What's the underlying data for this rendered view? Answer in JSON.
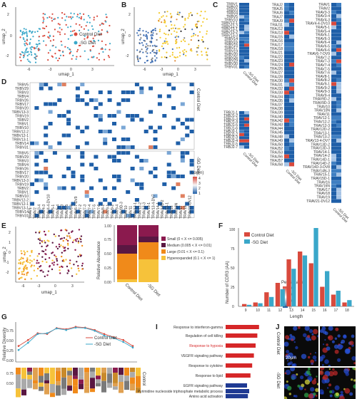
{
  "panels": {
    "A": "A",
    "B": "B",
    "C": "C",
    "D": "D",
    "E": "E",
    "F": "F",
    "G": "G",
    "I": "I",
    "J": "J"
  },
  "colors": {
    "control": "#d94a3d",
    "sg": "#3aa7c9",
    "yellow": "#f4c92b",
    "blue": "#3f6fb4",
    "heat": "#1f5fa8"
  },
  "umap": {
    "xlabel": "umap_1",
    "ylabel": "umap_2",
    "xticks": [
      "-6",
      "-3",
      "0",
      "3"
    ],
    "yticks": [
      "2",
      "1",
      "0",
      "-1",
      "-2"
    ]
  },
  "legendA": [
    {
      "label": "Control Diet"
    },
    {
      "label": "-SG Diet"
    }
  ],
  "panelC": {
    "trbv": [
      "TRBV1",
      "TRBV2",
      "TRBV3",
      "TRBV4",
      "TRBV5",
      "TRBV10",
      "TRBV12-1",
      "TRBV12-2",
      "TRBV13-1",
      "TRBV13-2",
      "TRBV13-3",
      "TRBV14",
      "TRBV15",
      "TRBV16",
      "TRBV17",
      "TRBV19",
      "TRBV20",
      "TRBV26",
      "TRBV29",
      "TRBV30",
      "TRBV31"
    ],
    "trbj": [
      "TRBJ1-1",
      "TRBJ1-2",
      "TRBJ1-3",
      "TRBJ1-4",
      "TRBJ1-5",
      "TRBJ1-6",
      "TRBJ2-1",
      "TRBJ2-2",
      "TRBJ2-3",
      "TRBJ2-4",
      "TRBJ2-5",
      "TRBJ2-7"
    ],
    "traj": [
      "TRAJ2",
      "TRAJ5",
      "TRAJ6",
      "TRAJ7",
      "TRAJ9",
      "TRAJ11",
      "TRAJ12",
      "TRAJ13",
      "TRAJ15",
      "TRAJ16",
      "TRAJ17",
      "TRAJ18",
      "TRAJ21",
      "TRAJ22",
      "TRAJ23",
      "TRAJ24",
      "TRAJ26",
      "TRAJ27",
      "TRAJ28",
      "TRAJ30",
      "TRAJ31",
      "TRAJ32",
      "TRAJ33",
      "TRAJ34",
      "TRAJ35",
      "TRAJ37",
      "TRAJ38",
      "TRAJ39",
      "TRAJ40",
      "TRAJ42",
      "TRAJ43",
      "TRAJ44",
      "TRAJ45",
      "TRAJ48",
      "TRAJ49",
      "TRAJ50",
      "TRAJ52",
      "TRAJ53",
      "TRAJ56",
      "TRAJ57",
      "TRAJ58"
    ],
    "trav": [
      "TRAV1",
      "TRAV2",
      "TRAV3-3",
      "TRAV3-4",
      "TRAV4-3",
      "TRAV4-4-DV10",
      "TRAV5-1",
      "TRAV5-4",
      "TRAV6-1",
      "TRAV6-3",
      "TRAV6-4",
      "TRAV6-5",
      "TRAV6-6",
      "TRAV6-7-DV9",
      "TRAV7-2",
      "TRAV7-3",
      "TRAV7-4",
      "TRAV7-5",
      "TRAV7-6",
      "TRAV8-1",
      "TRAV8-2",
      "TRAV9-1",
      "TRAV9-2",
      "TRAV9-3",
      "TRAV9-4",
      "TRAV9D-2",
      "TRAV9D-3",
      "TRAV10",
      "TRAV10N",
      "TRAV11",
      "TRAV12-1",
      "TRAV12-2",
      "TRAV12-3",
      "TRAV12D-2",
      "TRAV13-1",
      "TRAV13-2",
      "TRAV13-4-DV7",
      "TRAV13D-2",
      "TRAV13D-3",
      "TRAV14-1",
      "TRAV14-2",
      "TRAV14D-1",
      "TRAV14D-2",
      "TRAV14D-3-DV8",
      "TRAV14N-3",
      "TRAV15-1",
      "TRAV15D-1",
      "TRAV16",
      "TRAV16N",
      "TRAV17",
      "TRAV18",
      "TRAV19",
      "TRAV21-DV12"
    ],
    "xcols": [
      "Control Diet",
      "-SG Diet"
    ],
    "legend_title": "Percentage",
    "legend_ticks": [
      "30",
      "20",
      "10",
      "0"
    ]
  },
  "panelD": {
    "rows": [
      "TRBV5",
      "TRBV29",
      "TRBV3",
      "TRBV4",
      "TRBV26",
      "TRBV17",
      "TRBV20",
      "TRBV13-3",
      "TRBV19",
      "TRBV2",
      "TRBV1",
      "TRBV10",
      "TRBV12-2",
      "TRBV12-1",
      "TRBV13-1",
      "TRBV14",
      "TRBV31"
    ],
    "group1": "Control Diet",
    "group2": "-SG Diet",
    "cols": [
      "TRAV1",
      "TRAV2",
      "TRAV3-4",
      "TRAV4-3",
      "TRAV4-4-DV10",
      "TRAV5-1",
      "TRAV5-4",
      "TRAV6-3",
      "TRAV6-5",
      "TRAV6-6",
      "TRAV6-7-DV9",
      "TRAV7-2",
      "TRAV7-3",
      "TRAV7-4",
      "TRAV7-5",
      "TRAV7-6",
      "TRAV8-1",
      "TRAV9-1",
      "TRAV9-2",
      "TRAV9-4",
      "TRAV9D-3",
      "TRAV10",
      "TRAV11",
      "TRAV12-1",
      "TRAV12-2",
      "TRAV12-3",
      "TRAV13-1",
      "TRAV13-4-DV7",
      "TRAV14-1",
      "TRAV14D-2",
      "TRAV15-1",
      "TRAV16",
      "TRAV16N",
      "TRAV17",
      "TRAV19",
      "TRAV21-DV12"
    ],
    "legend_title": "Log(n)",
    "legend_ticks": [
      "4",
      "3",
      "2",
      "1"
    ]
  },
  "panelE": {
    "ylabel": "Relative Abundance",
    "xcats": [
      "Control Diet",
      "-SG Diet"
    ],
    "stack_control": [
      0.35,
      0.15,
      0.45,
      0.05
    ],
    "stack_sg": [
      0.2,
      0.1,
      0.3,
      0.4
    ],
    "legend": [
      {
        "label": "Small (0 < X <= 0.005)",
        "color": "#8b1a4e"
      },
      {
        "label": "Medium (0.005 < X <= 0.01)",
        "color": "#5a1742"
      },
      {
        "label": "Large (0.01 < X <= 0.1)",
        "color": "#f08a1a"
      },
      {
        "label": "Hyperexpanded (0.1 < X <= 1)",
        "color": "#f6c23a"
      }
    ],
    "yticks": [
      "1.00",
      "0.75",
      "0.50",
      "0.25",
      "0.00"
    ]
  },
  "chart_data": {
    "type": "bar",
    "title": "",
    "xlabel": "Length",
    "ylabel": "Number of CDR3 (AA)",
    "categories": [
      "9",
      "10",
      "11",
      "12",
      "13",
      "14",
      "15",
      "16",
      "17",
      "18"
    ],
    "series": [
      {
        "name": "Control Diet",
        "values": [
          3,
          5,
          18,
          30,
          60,
          70,
          55,
          25,
          15,
          5
        ]
      },
      {
        "name": "-SG Diet",
        "values": [
          2,
          4,
          12,
          22,
          48,
          65,
          100,
          45,
          20,
          8
        ]
      }
    ],
    "ylim": [
      0,
      100
    ],
    "yticks": [
      "0",
      "25",
      "50",
      "75",
      "100"
    ]
  },
  "panelG": {
    "ylabel": "Relative Diversity",
    "legend": [
      {
        "label": "Control Diet"
      },
      {
        "label": "-SG Diet"
      }
    ],
    "yticks": [
      "0.75",
      "0.50",
      "0.25",
      "0.00"
    ],
    "control": [
      0.4,
      0.55,
      0.72,
      0.7,
      0.85,
      0.82,
      0.88,
      0.86,
      0.8,
      0.7,
      0.62,
      0.55,
      0.4
    ],
    "sg": [
      0.3,
      0.48,
      0.7,
      0.72,
      0.84,
      0.8,
      0.86,
      0.85,
      0.78,
      0.66,
      0.6,
      0.5,
      0.36
    ],
    "bottom_label": "Control",
    "bottom_yticks": [
      "0.75",
      "0.50"
    ]
  },
  "panelI": {
    "items": [
      {
        "label": "Response to interferon-gamma",
        "color": "#d62728",
        "value": 0.78
      },
      {
        "label": "Regulation of cell killing",
        "color": "#d62728",
        "value": 0.74
      },
      {
        "label": "Response to hypoxia",
        "color": "#d62728",
        "value": 0.7,
        "highlight": true
      },
      {
        "label": "VEGFR signaling pathway",
        "color": "#d62728",
        "value": 0.66
      },
      {
        "label": "Response to cytokine",
        "color": "#d62728",
        "value": 0.62
      },
      {
        "label": "Response to lipid",
        "color": "#d62728",
        "value": 0.58
      },
      {
        "label": "EGFR signaling pathway",
        "color": "#1f3a93",
        "value": 0.5
      },
      {
        "label": "Pyrimidine nucleoside triphosphate metabolic process",
        "color": "#1f3a93",
        "value": 0.55
      },
      {
        "label": "Amino acid activation",
        "color": "#1f3a93",
        "value": 0.52
      }
    ]
  },
  "panelJ": {
    "label_top": "Control Diet",
    "label_bottom": "-SG Diet",
    "scale": "20μm"
  }
}
